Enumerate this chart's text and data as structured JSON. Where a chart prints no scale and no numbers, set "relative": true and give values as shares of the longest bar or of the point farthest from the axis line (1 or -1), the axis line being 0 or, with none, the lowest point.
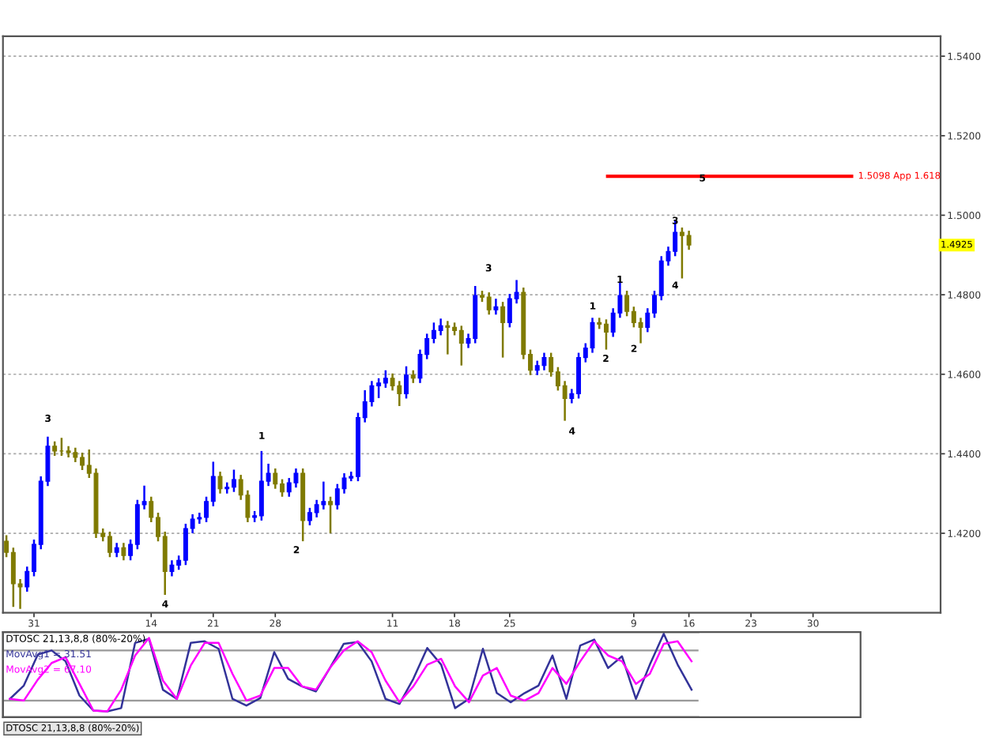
{
  "chart_data": [
    {
      "type": "candlestick",
      "categories": [
        null,
        null,
        null,
        null,
        "31",
        null,
        null,
        null,
        null,
        null,
        null,
        null,
        null,
        null,
        null,
        null,
        null,
        null,
        null,
        null,
        null,
        "14",
        null,
        null,
        null,
        null,
        null,
        null,
        null,
        null,
        "21",
        null,
        null,
        null,
        null,
        null,
        null,
        null,
        null,
        "28",
        null,
        null,
        null,
        null,
        null,
        null,
        null,
        null,
        null,
        null,
        null,
        null,
        null,
        null,
        null,
        null,
        "11",
        null,
        null,
        null,
        null,
        null,
        null,
        null,
        null,
        "18",
        null,
        null,
        null,
        null,
        null,
        null,
        null,
        "25",
        null,
        null,
        null,
        null,
        null,
        null,
        null,
        null,
        null,
        null,
        null,
        null,
        null,
        null,
        null,
        null,
        null,
        "9",
        null,
        null,
        null,
        null,
        null,
        null,
        null,
        "16",
        null,
        null,
        null,
        null,
        null,
        null,
        null,
        null,
        "23",
        null,
        null,
        null,
        null,
        null,
        null,
        null,
        null,
        "30",
        null,
        null,
        null,
        null,
        null,
        null,
        null,
        null,
        null,
        null,
        null,
        null,
        null,
        null,
        null,
        null,
        null,
        null
      ],
      "ohlc": [
        [
          1.418,
          1.4195,
          1.414,
          1.4152
        ],
        [
          1.4152,
          1.4164,
          1.4015,
          1.4073
        ],
        [
          1.4073,
          1.4085,
          1.401,
          1.4065
        ],
        [
          1.4065,
          1.4116,
          1.4053,
          1.4104
        ],
        [
          1.4104,
          1.4184,
          1.4092,
          1.4172
        ],
        [
          1.4172,
          1.4343,
          1.416,
          1.4331
        ],
        [
          1.4331,
          1.4443,
          1.4319,
          1.4419
        ],
        [
          1.4419,
          1.4431,
          1.4395,
          1.4407
        ],
        [
          1.4407,
          1.444,
          1.4395,
          1.4407
        ],
        [
          1.4407,
          1.4419,
          1.4391,
          1.4403
        ],
        [
          1.4403,
          1.4415,
          1.4379,
          1.4391
        ],
        [
          1.4391,
          1.4403,
          1.4359,
          1.4371
        ],
        [
          1.4371,
          1.4411,
          1.4339,
          1.4351
        ],
        [
          1.4351,
          1.4363,
          1.4188,
          1.42
        ],
        [
          1.42,
          1.4212,
          1.418,
          1.4192
        ],
        [
          1.4192,
          1.4204,
          1.414,
          1.4152
        ],
        [
          1.4152,
          1.4176,
          1.414,
          1.4164
        ],
        [
          1.4164,
          1.4176,
          1.4132,
          1.4144
        ],
        [
          1.4144,
          1.4184,
          1.4132,
          1.4172
        ],
        [
          1.4172,
          1.4284,
          1.416,
          1.4272
        ],
        [
          1.4272,
          1.432,
          1.426,
          1.428
        ],
        [
          1.428,
          1.4292,
          1.4228,
          1.424
        ],
        [
          1.424,
          1.4252,
          1.418,
          1.4192
        ],
        [
          1.4192,
          1.4204,
          1.4045,
          1.4104
        ],
        [
          1.4104,
          1.4132,
          1.4092,
          1.412
        ],
        [
          1.412,
          1.4144,
          1.4108,
          1.4132
        ],
        [
          1.4132,
          1.4224,
          1.412,
          1.4212
        ],
        [
          1.4212,
          1.4248,
          1.42,
          1.4236
        ],
        [
          1.4236,
          1.4252,
          1.4224,
          1.424
        ],
        [
          1.424,
          1.4292,
          1.4228,
          1.428
        ],
        [
          1.428,
          1.438,
          1.4268,
          1.4343
        ],
        [
          1.4343,
          1.4355,
          1.43,
          1.4312
        ],
        [
          1.4312,
          1.4328,
          1.43,
          1.4316
        ],
        [
          1.4316,
          1.436,
          1.4304,
          1.4335
        ],
        [
          1.4335,
          1.4347,
          1.4284,
          1.4296
        ],
        [
          1.4296,
          1.4308,
          1.4228,
          1.424
        ],
        [
          1.424,
          1.4256,
          1.4228,
          1.4244
        ],
        [
          1.4244,
          1.4407,
          1.4232,
          1.4331
        ],
        [
          1.4331,
          1.4375,
          1.4319,
          1.4351
        ],
        [
          1.4351,
          1.4363,
          1.4312,
          1.4324
        ],
        [
          1.4324,
          1.4336,
          1.4292,
          1.4304
        ],
        [
          1.4304,
          1.4339,
          1.4292,
          1.4327
        ],
        [
          1.4327,
          1.4363,
          1.4315,
          1.4351
        ],
        [
          1.4351,
          1.4363,
          1.418,
          1.4232
        ],
        [
          1.4232,
          1.4264,
          1.422,
          1.4252
        ],
        [
          1.4252,
          1.4284,
          1.424,
          1.4272
        ],
        [
          1.4272,
          1.433,
          1.426,
          1.428
        ],
        [
          1.428,
          1.4292,
          1.42,
          1.4272
        ],
        [
          1.4272,
          1.4324,
          1.426,
          1.4312
        ],
        [
          1.4312,
          1.4351,
          1.43,
          1.4339
        ],
        [
          1.4339,
          1.4355,
          1.4331,
          1.4343
        ],
        [
          1.4343,
          1.4503,
          1.4331,
          1.4491
        ],
        [
          1.4491,
          1.456,
          1.4479,
          1.4531
        ],
        [
          1.4531,
          1.4583,
          1.4519,
          1.4571
        ],
        [
          1.4571,
          1.459,
          1.454,
          1.4578
        ],
        [
          1.4578,
          1.461,
          1.4566,
          1.459
        ],
        [
          1.459,
          1.4602,
          1.4559,
          1.4571
        ],
        [
          1.4571,
          1.4583,
          1.452,
          1.4551
        ],
        [
          1.4551,
          1.462,
          1.4539,
          1.4598
        ],
        [
          1.4598,
          1.461,
          1.4578,
          1.459
        ],
        [
          1.459,
          1.4662,
          1.4578,
          1.465
        ],
        [
          1.465,
          1.4702,
          1.4638,
          1.469
        ],
        [
          1.469,
          1.473,
          1.4678,
          1.471
        ],
        [
          1.471,
          1.474,
          1.4698,
          1.4722
        ],
        [
          1.4722,
          1.4734,
          1.465,
          1.4718
        ],
        [
          1.4718,
          1.473,
          1.4698,
          1.471
        ],
        [
          1.471,
          1.4722,
          1.4622,
          1.4678
        ],
        [
          1.4678,
          1.4702,
          1.4666,
          1.469
        ],
        [
          1.469,
          1.4822,
          1.4678,
          1.4798
        ],
        [
          1.4798,
          1.481,
          1.4782,
          1.4794
        ],
        [
          1.4794,
          1.4806,
          1.475,
          1.4762
        ],
        [
          1.4762,
          1.479,
          1.475,
          1.477
        ],
        [
          1.477,
          1.4782,
          1.4642,
          1.473
        ],
        [
          1.473,
          1.4802,
          1.4718,
          1.479
        ],
        [
          1.479,
          1.4837,
          1.4778,
          1.4806
        ],
        [
          1.4806,
          1.4818,
          1.4638,
          1.465
        ],
        [
          1.465,
          1.4662,
          1.4598,
          1.461
        ],
        [
          1.461,
          1.4634,
          1.4598,
          1.4622
        ],
        [
          1.4622,
          1.4654,
          1.461,
          1.4642
        ],
        [
          1.4642,
          1.4654,
          1.4594,
          1.4606
        ],
        [
          1.4606,
          1.4618,
          1.4559,
          1.4571
        ],
        [
          1.4571,
          1.4583,
          1.4483,
          1.4539
        ],
        [
          1.4539,
          1.4563,
          1.4527,
          1.4551
        ],
        [
          1.4551,
          1.4654,
          1.4539,
          1.4642
        ],
        [
          1.4642,
          1.4678,
          1.463,
          1.4666
        ],
        [
          1.4666,
          1.4742,
          1.4654,
          1.473
        ],
        [
          1.473,
          1.4742,
          1.4714,
          1.4726
        ],
        [
          1.4726,
          1.4738,
          1.4662,
          1.4706
        ],
        [
          1.4706,
          1.4766,
          1.4694,
          1.4754
        ],
        [
          1.4754,
          1.483,
          1.4742,
          1.4798
        ],
        [
          1.4798,
          1.481,
          1.4746,
          1.4758
        ],
        [
          1.4758,
          1.477,
          1.4718,
          1.473
        ],
        [
          1.473,
          1.4742,
          1.4678,
          1.4718
        ],
        [
          1.4718,
          1.4766,
          1.4706,
          1.4754
        ],
        [
          1.4754,
          1.481,
          1.4742,
          1.4798
        ],
        [
          1.4798,
          1.4897,
          1.4786,
          1.4885
        ],
        [
          1.4885,
          1.4921,
          1.4873,
          1.4909
        ],
        [
          1.4909,
          1.4989,
          1.4897,
          1.4957
        ],
        [
          1.4957,
          1.4969,
          1.4841,
          1.4949
        ],
        [
          1.4949,
          1.4961,
          1.4913,
          1.4925
        ],
        null,
        null,
        null,
        null,
        null,
        null,
        null,
        null,
        null,
        null,
        null,
        null,
        null,
        null,
        null,
        null,
        null,
        null,
        null,
        null,
        null,
        null,
        null,
        null,
        null,
        null,
        null,
        null,
        null,
        null,
        null,
        null,
        null,
        null,
        null,
        null
      ],
      "colors": [
        "#7f7a00",
        "#7f7a00",
        "#7f7a00",
        "#0000ff",
        "#0000ff",
        "#0000ff",
        "#0000ff",
        "#7f7a00",
        "#7f7a00",
        "#7f7a00",
        "#7f7a00",
        "#7f7a00",
        "#7f7a00",
        "#7f7a00",
        "#7f7a00",
        "#7f7a00",
        "#0000ff",
        "#7f7a00",
        "#0000ff",
        "#0000ff",
        "#0000ff",
        "#7f7a00",
        "#7f7a00",
        "#7f7a00",
        "#0000ff",
        "#0000ff",
        "#0000ff",
        "#0000ff",
        "#0000ff",
        "#0000ff",
        "#0000ff",
        "#7f7a00",
        "#0000ff",
        "#0000ff",
        "#7f7a00",
        "#7f7a00",
        "#0000ff",
        "#0000ff",
        "#0000ff",
        "#7f7a00",
        "#7f7a00",
        "#0000ff",
        "#0000ff",
        "#7f7a00",
        "#0000ff",
        "#0000ff",
        "#0000ff",
        "#7f7a00",
        "#0000ff",
        "#0000ff",
        "#0000ff",
        "#0000ff",
        "#0000ff",
        "#0000ff",
        "#0000ff",
        "#0000ff",
        "#7f7a00",
        "#7f7a00",
        "#0000ff",
        "#7f7a00",
        "#0000ff",
        "#0000ff",
        "#0000ff",
        "#0000ff",
        "#7f7a00",
        "#7f7a00",
        "#7f7a00",
        "#0000ff",
        "#0000ff",
        "#7f7a00",
        "#7f7a00",
        "#0000ff",
        "#7f7a00",
        "#0000ff",
        "#0000ff",
        "#7f7a00",
        "#7f7a00",
        "#0000ff",
        "#0000ff",
        "#7f7a00",
        "#7f7a00",
        "#7f7a00",
        "#0000ff",
        "#0000ff",
        "#0000ff",
        "#0000ff",
        "#7f7a00",
        "#7f7a00",
        "#0000ff",
        "#0000ff",
        "#7f7a00",
        "#7f7a00",
        "#7f7a00",
        "#0000ff",
        "#0000ff",
        "#0000ff",
        "#0000ff",
        "#0000ff",
        "#7f7a00",
        "#7f7a00",
        null,
        null,
        null,
        null,
        null,
        null,
        null,
        null,
        null,
        null,
        null,
        null,
        null,
        null,
        null,
        null,
        null,
        null,
        null,
        null,
        null,
        null,
        null,
        null,
        null,
        null,
        null,
        null,
        null,
        null,
        null,
        null,
        null,
        null,
        null,
        null
      ],
      "ylim": [
        1.4,
        1.545
      ],
      "yticks": [
        {
          "value": 1.42,
          "label": "1.4200"
        },
        {
          "value": 1.44,
          "label": "1.4400"
        },
        {
          "value": 1.46,
          "label": "1.4600"
        },
        {
          "value": 1.48,
          "label": "1.4800"
        },
        {
          "value": 1.5,
          "label": "1.5000"
        },
        {
          "value": 1.52,
          "label": "1.5200"
        },
        {
          "value": 1.54,
          "label": "1.5400"
        }
      ],
      "grid": "y",
      "ref_lines": [
        {
          "axis": "y",
          "value": 1.5098,
          "label": "1.5098 App 1.618",
          "color": "#ff0000"
        }
      ],
      "annotations": [
        "3",
        "4",
        "1",
        "2",
        "3",
        "4",
        "1",
        "2",
        "1",
        "2",
        "3",
        "4",
        "5",
        {
          "text": "1.4925",
          "y": 1.4925
        }
      ]
    },
    {
      "type": "line",
      "relative": true,
      "title": "DTOSC 21,13,8,8 (80%-20%)",
      "categories": [
        null,
        null,
        null,
        null,
        null,
        null,
        null,
        null,
        null,
        null,
        null,
        null,
        null,
        null,
        null,
        null,
        null,
        null,
        null,
        null,
        null,
        null,
        null,
        null,
        null,
        null,
        null,
        null,
        null,
        null,
        null,
        null,
        null,
        null,
        null,
        null,
        null,
        null,
        null,
        null,
        null,
        null,
        null,
        null,
        null,
        null,
        null,
        null,
        null,
        null
      ],
      "series": [
        {
          "name": "MovAvg1 = 31.51",
          "color": "#333399",
          "values": [
            0.22,
            0.38,
            0.75,
            0.8,
            0.67,
            0.26,
            0.08,
            0.07,
            0.11,
            0.89,
            0.94,
            0.33,
            0.22,
            0.89,
            0.91,
            0.82,
            0.22,
            0.14,
            0.23,
            0.78,
            0.46,
            0.37,
            0.31,
            0.59,
            0.88,
            0.9,
            0.67,
            0.22,
            0.16,
            0.46,
            0.83,
            0.63,
            0.11,
            0.22,
            0.82,
            0.29,
            0.18,
            0.29,
            0.38,
            0.74,
            0.22,
            0.86,
            0.93,
            0.59,
            0.73,
            0.22,
            0.63,
            1.0,
            0.63,
            0.33
          ]
        },
        {
          "name": "MovAvg2 = 67.10",
          "color": "#ff00ff",
          "values": [
            0.22,
            0.2,
            0.45,
            0.65,
            0.72,
            0.4,
            0.08,
            0.07,
            0.33,
            0.74,
            0.95,
            0.44,
            0.22,
            0.62,
            0.89,
            0.89,
            0.52,
            0.2,
            0.26,
            0.59,
            0.59,
            0.37,
            0.33,
            0.59,
            0.8,
            0.91,
            0.78,
            0.44,
            0.18,
            0.37,
            0.63,
            0.7,
            0.37,
            0.18,
            0.5,
            0.59,
            0.26,
            0.2,
            0.29,
            0.59,
            0.4,
            0.67,
            0.91,
            0.74,
            0.67,
            0.4,
            0.52,
            0.88,
            0.91,
            0.67
          ]
        }
      ],
      "ref_lines": [
        {
          "axis": "y",
          "value": 0.8,
          "color": "#999999"
        },
        {
          "axis": "y",
          "value": 0.2,
          "color": "#999999"
        }
      ],
      "annotations": [
        "DTOSC 21,13,8,8 (80%-20%)"
      ]
    }
  ]
}
